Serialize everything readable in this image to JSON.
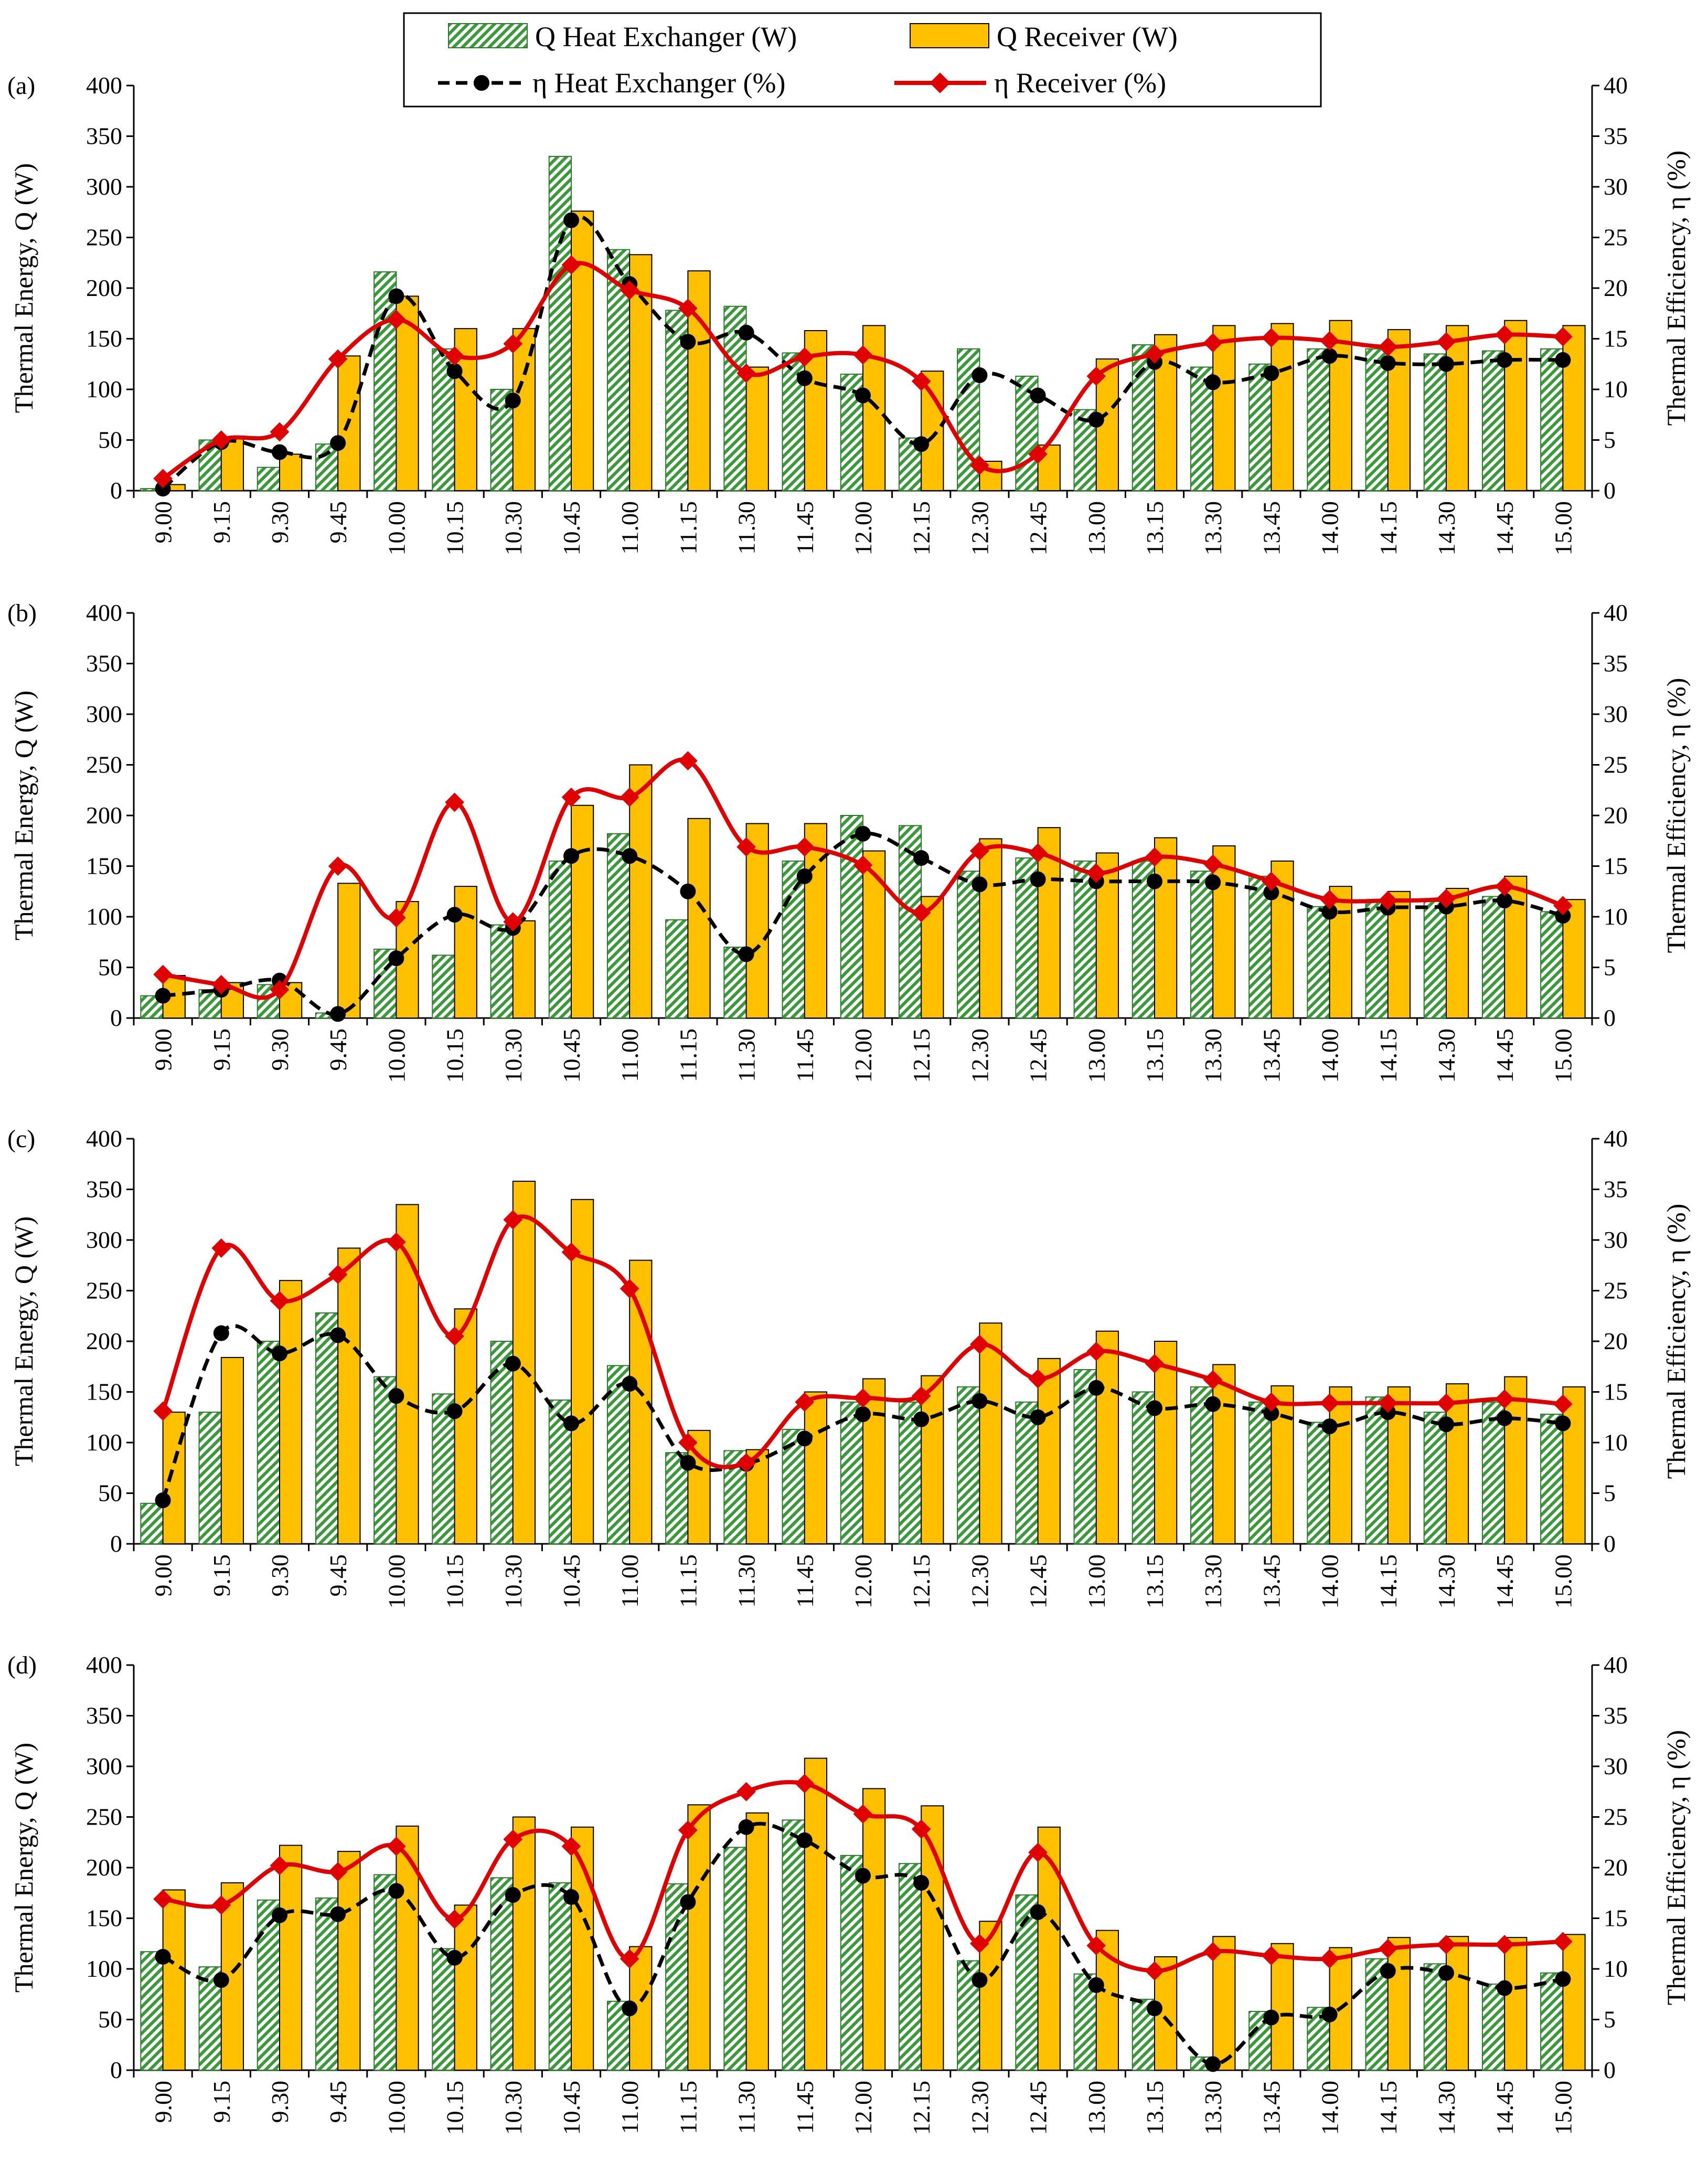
{
  "legend": {
    "items": [
      {
        "key": "qhx",
        "label": "Q Heat Exchanger (W)"
      },
      {
        "key": "qrx",
        "label": "Q Receiver (W)"
      },
      {
        "key": "ehx",
        "label": "η Heat Exchanger (%)"
      },
      {
        "key": "erx",
        "label": "η Receiver (%)"
      }
    ]
  },
  "colors": {
    "hx_fill": "#3a9a3a",
    "hx_bg": "#ffffff",
    "receiver_fill": "#ffc000",
    "eta_hx_line": "#000000",
    "eta_receiver_line": "#e00000",
    "eta_receiver_marker": "#e00000"
  },
  "chart_data": [
    {
      "type": "bar",
      "panel": "(a)",
      "categories": [
        "9.00",
        "9.15",
        "9.30",
        "9.45",
        "10.00",
        "10.15",
        "10.30",
        "10.45",
        "11.00",
        "11.15",
        "11.30",
        "11.45",
        "12.00",
        "12.15",
        "12.30",
        "12.45",
        "13.00",
        "13.15",
        "13.30",
        "13.45",
        "14.00",
        "14.15",
        "14.30",
        "14.45",
        "15.00"
      ],
      "ylabel": "Thermal Energy, Q (W)",
      "y2label": "Thermal Efficiency, η (%)",
      "ylim": [
        0,
        400
      ],
      "yticks": [
        0,
        50,
        100,
        150,
        200,
        250,
        300,
        350,
        400
      ],
      "y2lim": [
        0,
        40
      ],
      "y2ticks": [
        0,
        5,
        10,
        15,
        20,
        25,
        30,
        35,
        40
      ],
      "series": [
        {
          "name": "Q Heat Exchanger (W)",
          "axis": "left",
          "kind": "bar",
          "values": [
            2,
            50,
            23,
            46,
            216,
            140,
            100,
            330,
            238,
            178,
            182,
            136,
            115,
            52,
            140,
            113,
            80,
            144,
            122,
            125,
            140,
            140,
            135,
            138,
            140
          ]
        },
        {
          "name": "Q Receiver (W)",
          "axis": "left",
          "kind": "bar",
          "values": [
            6,
            52,
            36,
            133,
            192,
            160,
            160,
            276,
            233,
            217,
            122,
            158,
            163,
            118,
            29,
            45,
            130,
            154,
            163,
            165,
            168,
            159,
            163,
            168,
            163
          ]
        },
        {
          "name": "η Heat Exchanger (%)",
          "axis": "right",
          "kind": "line",
          "values": [
            0.2,
            4.8,
            3.8,
            4.7,
            19.2,
            11.8,
            8.9,
            26.7,
            20.4,
            14.7,
            15.6,
            11.1,
            9.4,
            4.6,
            11.4,
            9.4,
            7,
            12.7,
            10.7,
            11.6,
            13.3,
            12.6,
            12.5,
            12.9,
            12.9
          ]
        },
        {
          "name": "η Receiver (%)",
          "axis": "right",
          "kind": "line",
          "values": [
            1.2,
            5,
            5.8,
            13,
            16.9,
            13.3,
            14.5,
            22.3,
            19.8,
            18,
            11.6,
            13.2,
            13.4,
            10.8,
            2.5,
            3.6,
            11.3,
            13.5,
            14.6,
            15.1,
            14.8,
            14.2,
            14.7,
            15.4,
            15.2
          ]
        }
      ]
    },
    {
      "type": "bar",
      "panel": "(b)",
      "categories": [
        "9.00",
        "9.15",
        "9.30",
        "9.45",
        "10.00",
        "10.15",
        "10.30",
        "10.45",
        "11.00",
        "11.15",
        "11.30",
        "11.45",
        "12.00",
        "12.15",
        "12.30",
        "12.45",
        "13.00",
        "13.15",
        "13.30",
        "13.45",
        "14.00",
        "14.15",
        "14.30",
        "14.45",
        "15.00"
      ],
      "ylabel": "Thermal Energy, Q (W)",
      "y2label": "Thermal Efficiency, η (%)",
      "ylim": [
        0,
        400
      ],
      "yticks": [
        0,
        50,
        100,
        150,
        200,
        250,
        300,
        350,
        400
      ],
      "y2lim": [
        0,
        40
      ],
      "y2ticks": [
        0,
        5,
        10,
        15,
        20,
        25,
        30,
        35,
        40
      ],
      "series": [
        {
          "name": "Q Heat Exchanger (W)",
          "axis": "left",
          "kind": "bar",
          "values": [
            22,
            28,
            33,
            5,
            68,
            62,
            92,
            155,
            182,
            97,
            70,
            155,
            200,
            190,
            145,
            158,
            155,
            155,
            145,
            140,
            110,
            115,
            115,
            120,
            105
          ]
        },
        {
          "name": "Q Receiver (W)",
          "axis": "left",
          "kind": "bar",
          "values": [
            42,
            35,
            35,
            133,
            115,
            130,
            96,
            210,
            250,
            197,
            192,
            192,
            165,
            120,
            177,
            188,
            163,
            178,
            170,
            155,
            130,
            125,
            128,
            140,
            117
          ]
        },
        {
          "name": "η Heat Exchanger (%)",
          "axis": "right",
          "kind": "line",
          "values": [
            2.2,
            2.8,
            3.7,
            0.4,
            5.9,
            10.2,
            8.9,
            16,
            16,
            12.5,
            6.3,
            14,
            18.2,
            15.8,
            13.2,
            13.7,
            13.5,
            13.5,
            13.4,
            12.4,
            10.5,
            10.9,
            11,
            11.6,
            10.1
          ]
        },
        {
          "name": "η Receiver (%)",
          "axis": "right",
          "kind": "line",
          "values": [
            4.3,
            3.3,
            2.8,
            15,
            9.9,
            21.3,
            9.5,
            21.8,
            21.8,
            25.4,
            16.9,
            16.9,
            15.1,
            10.4,
            16.5,
            16.3,
            14.3,
            15.9,
            15.2,
            13.5,
            11.7,
            11.6,
            11.8,
            13,
            11.1
          ]
        }
      ]
    },
    {
      "type": "bar",
      "panel": "(c)",
      "categories": [
        "9.00",
        "9.15",
        "9.30",
        "9.45",
        "10.00",
        "10.15",
        "10.30",
        "10.45",
        "11.00",
        "11.15",
        "11.30",
        "11.45",
        "12.00",
        "12.15",
        "12.30",
        "12.45",
        "13.00",
        "13.15",
        "13.30",
        "13.45",
        "14.00",
        "14.15",
        "14.30",
        "14.45",
        "15.00"
      ],
      "ylabel": "Thermal Energy, Q (W)",
      "y2label": "Thermal Efficiency, η (%)",
      "ylim": [
        0,
        400
      ],
      "yticks": [
        0,
        50,
        100,
        150,
        200,
        250,
        300,
        350,
        400
      ],
      "y2lim": [
        0,
        40
      ],
      "y2ticks": [
        0,
        5,
        10,
        15,
        20,
        25,
        30,
        35,
        40
      ],
      "series": [
        {
          "name": "Q Heat Exchanger (W)",
          "axis": "left",
          "kind": "bar",
          "values": [
            40,
            130,
            200,
            228,
            165,
            148,
            200,
            142,
            176,
            90,
            92,
            113,
            140,
            140,
            155,
            140,
            172,
            150,
            155,
            140,
            120,
            145,
            130,
            140,
            128
          ]
        },
        {
          "name": "Q Receiver (W)",
          "axis": "left",
          "kind": "bar",
          "values": [
            130,
            184,
            260,
            292,
            335,
            232,
            358,
            340,
            280,
            112,
            93,
            150,
            163,
            166,
            218,
            183,
            210,
            200,
            177,
            156,
            155,
            155,
            158,
            165,
            155
          ]
        },
        {
          "name": "η Heat Exchanger (%)",
          "axis": "right",
          "kind": "line",
          "values": [
            4.3,
            20.8,
            18.8,
            20.6,
            14.6,
            13.1,
            17.8,
            11.9,
            15.8,
            8,
            7.9,
            10.4,
            12.8,
            12.3,
            14.1,
            12.5,
            15.4,
            13.4,
            13.8,
            12.9,
            11.6,
            13,
            11.8,
            12.4,
            11.9
          ]
        },
        {
          "name": "η Receiver (%)",
          "axis": "right",
          "kind": "line",
          "values": [
            13.1,
            29.2,
            24,
            26.6,
            29.8,
            20.5,
            32,
            28.8,
            25.2,
            10,
            8,
            14,
            14.4,
            14.6,
            19.7,
            16.3,
            19,
            17.8,
            16.2,
            14,
            13.9,
            13.9,
            13.9,
            14.3,
            13.8
          ]
        }
      ]
    },
    {
      "type": "bar",
      "panel": "(d)",
      "categories": [
        "9.00",
        "9.15",
        "9.30",
        "9.45",
        "10.00",
        "10.15",
        "10.30",
        "10.45",
        "11.00",
        "11.15",
        "11.30",
        "11.45",
        "12.00",
        "12.15",
        "12.30",
        "12.45",
        "13.00",
        "13.15",
        "13.30",
        "13.45",
        "14.00",
        "14.15",
        "14.30",
        "14.45",
        "15.00"
      ],
      "ylabel": "Thermal Energy, Q (W)",
      "y2label": "Thermal Efficiency, η (%)",
      "ylim": [
        0,
        400
      ],
      "yticks": [
        0,
        50,
        100,
        150,
        200,
        250,
        300,
        350,
        400
      ],
      "y2lim": [
        0,
        40
      ],
      "y2ticks": [
        0,
        5,
        10,
        15,
        20,
        25,
        30,
        35,
        40
      ],
      "series": [
        {
          "name": "Q Heat Exchanger (W)",
          "axis": "left",
          "kind": "bar",
          "values": [
            117,
            102,
            168,
            170,
            193,
            120,
            190,
            185,
            68,
            184,
            220,
            247,
            212,
            204,
            108,
            173,
            95,
            70,
            13,
            58,
            62,
            110,
            105,
            85,
            96
          ]
        },
        {
          "name": "Q Receiver (W)",
          "axis": "left",
          "kind": "bar",
          "values": [
            178,
            185,
            222,
            216,
            241,
            163,
            250,
            240,
            122,
            262,
            254,
            308,
            278,
            261,
            147,
            240,
            138,
            112,
            132,
            125,
            121,
            131,
            132,
            131,
            134
          ]
        },
        {
          "name": "η Heat Exchanger (%)",
          "axis": "right",
          "kind": "line",
          "values": [
            11.2,
            8.9,
            15.3,
            15.4,
            17.7,
            11.1,
            17.3,
            17.1,
            6.1,
            16.6,
            24,
            22.7,
            19.2,
            18.5,
            8.9,
            15.6,
            8.4,
            6.1,
            0.6,
            5.2,
            5.5,
            9.8,
            9.6,
            8.1,
            9
          ]
        },
        {
          "name": "η Receiver (%)",
          "axis": "right",
          "kind": "line",
          "values": [
            16.9,
            16.3,
            20.2,
            19.6,
            22.1,
            14.9,
            22.8,
            22.1,
            11,
            23.7,
            27.5,
            28.3,
            25.3,
            23.8,
            12.5,
            21.5,
            12.3,
            9.8,
            11.7,
            11.3,
            11,
            12,
            12.4,
            12.4,
            12.7
          ]
        }
      ]
    }
  ]
}
